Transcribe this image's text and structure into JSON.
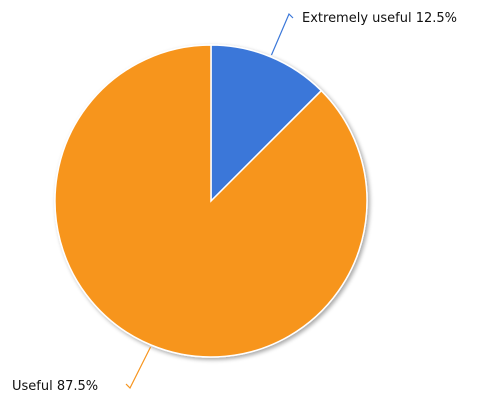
{
  "chart_data": {
    "type": "pie",
    "title": "",
    "slices": [
      {
        "label": "Extremely useful",
        "value": 12.5,
        "display": "Extremely useful 12.5%",
        "color": "#3a77d9"
      },
      {
        "label": "Useful",
        "value": 87.5,
        "display": "Useful 87.5%",
        "color": "#f7951e"
      }
    ],
    "start_angle": "12 o'clock",
    "direction": "clockwise",
    "legend": "none",
    "labels": "outside with leader lines"
  }
}
